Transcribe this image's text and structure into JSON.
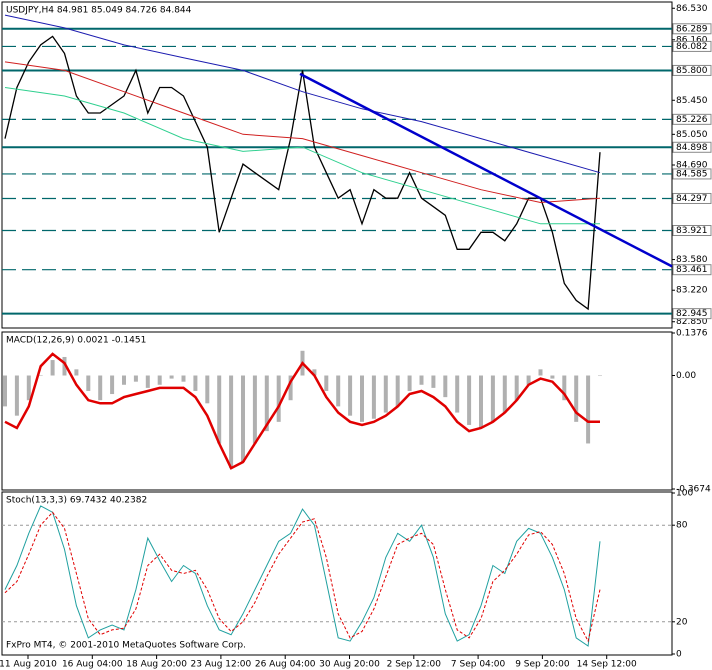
{
  "chart_data": [
    {
      "type": "price",
      "title": "USDJPY,H4  84.981 85.049 84.726 84.844",
      "ylim": [
        82.8,
        86.58
      ],
      "yticks": [
        {
          "value": 86.53,
          "label": "86.530"
        },
        {
          "value": 86.16,
          "label": "86.160"
        },
        {
          "value": 85.45,
          "label": "85.450"
        },
        {
          "value": 85.05,
          "label": "85.050"
        },
        {
          "value": 84.69,
          "label": "84.690"
        },
        {
          "value": 83.58,
          "label": "83.580"
        },
        {
          "value": 83.22,
          "label": "83.220"
        },
        {
          "value": 82.85,
          "label": "82.850"
        }
      ],
      "levels": [
        86.289,
        86.082,
        {
          "value": 85.8,
          "label": "85.800"
        },
        85.226,
        84.898,
        84.585,
        84.297,
        83.921,
        83.461,
        82.945
      ],
      "solid_levels": [
        0,
        2,
        4,
        9
      ],
      "level_color": "#00676b",
      "trendline": {
        "color": "#0000cc",
        "values": [
          85.76,
          83.5
        ]
      },
      "series": [
        {
          "name": "Close",
          "color": "#000000",
          "values": [
            85.0,
            85.6,
            85.9,
            86.1,
            86.2,
            86.0,
            85.5,
            85.3,
            85.3,
            85.4,
            85.5,
            85.8,
            85.3,
            85.6,
            85.6,
            85.5,
            85.2,
            84.9,
            83.9,
            84.3,
            84.7,
            84.6,
            84.5,
            84.4,
            85.0,
            85.8,
            84.9,
            84.6,
            84.3,
            84.4,
            84.0,
            84.4,
            84.3,
            84.3,
            84.6,
            84.3,
            84.2,
            84.1,
            83.7,
            83.7,
            83.9,
            83.9,
            83.8,
            84.0,
            84.3,
            84.3,
            83.9,
            83.3,
            83.1,
            83.0,
            84.84
          ]
        },
        {
          "name": "MA blue",
          "color": "#1c1cb0",
          "values": [
            86.45,
            86.3,
            86.1,
            85.95,
            85.8,
            85.55,
            85.35,
            85.2,
            85.0,
            84.8,
            84.6
          ]
        },
        {
          "name": "MA red",
          "color": "#d02020",
          "values": [
            85.9,
            85.8,
            85.55,
            85.3,
            85.05,
            85.0,
            84.8,
            84.6,
            84.4,
            84.25,
            84.3
          ]
        },
        {
          "name": "MA green",
          "color": "#30d090",
          "values": [
            85.6,
            85.5,
            85.3,
            85.0,
            84.85,
            84.9,
            84.6,
            84.4,
            84.2,
            84.0,
            84.0
          ]
        }
      ],
      "x_labels": [
        "11 Aug 2010",
        "16 Aug 04:00",
        "18 Aug 20:00",
        "23 Aug 12:00",
        "26 Aug 04:00",
        "30 Aug 20:00",
        "2 Sep 12:00",
        "7 Sep 04:00",
        "9 Sep 20:00",
        "14 Sep 12:00"
      ]
    },
    {
      "type": "macd",
      "title": "MACD(12,26,9) 0.0021 -0.1451",
      "ylim": [
        -0.3674,
        0.1376
      ],
      "yticks": [
        0.1376,
        {
          "value": 0,
          "label": "0.00"
        },
        -0.3674
      ],
      "series": [
        {
          "name": "Histogram",
          "color": "#b0b0b0",
          "values": [
            -0.1,
            -0.13,
            -0.08,
            0.0,
            0.05,
            0.06,
            0.02,
            -0.05,
            -0.08,
            -0.06,
            -0.03,
            -0.02,
            -0.04,
            -0.03,
            -0.01,
            -0.02,
            -0.05,
            -0.09,
            -0.22,
            -0.3,
            -0.28,
            -0.22,
            -0.18,
            -0.15,
            -0.08,
            0.08,
            0.02,
            -0.05,
            -0.1,
            -0.13,
            -0.15,
            -0.14,
            -0.12,
            -0.1,
            -0.05,
            -0.03,
            -0.04,
            -0.07,
            -0.12,
            -0.16,
            -0.17,
            -0.15,
            -0.12,
            -0.08,
            -0.03,
            0.02,
            -0.01,
            -0.08,
            -0.15,
            -0.22,
            0.0
          ]
        },
        {
          "name": "Signal",
          "color": "#e00000",
          "values": [
            -0.15,
            -0.17,
            -0.1,
            0.03,
            0.07,
            0.04,
            -0.03,
            -0.08,
            -0.09,
            -0.09,
            -0.07,
            -0.06,
            -0.05,
            -0.04,
            -0.04,
            -0.04,
            -0.07,
            -0.13,
            -0.22,
            -0.3,
            -0.28,
            -0.22,
            -0.16,
            -0.1,
            -0.02,
            0.04,
            0.0,
            -0.07,
            -0.12,
            -0.15,
            -0.16,
            -0.15,
            -0.13,
            -0.1,
            -0.06,
            -0.05,
            -0.07,
            -0.1,
            -0.15,
            -0.18,
            -0.17,
            -0.15,
            -0.12,
            -0.08,
            -0.03,
            -0.01,
            -0.02,
            -0.06,
            -0.12,
            -0.15,
            -0.15
          ]
        }
      ]
    },
    {
      "type": "stoch",
      "title": "Stoch(13,3,3) 69.7432 40.2382",
      "ylim": [
        0,
        100
      ],
      "yticks": [
        100,
        80,
        20,
        0
      ],
      "dashed_ticks": [
        1,
        2
      ],
      "series": [
        {
          "name": "Main",
          "color": "#20a0a0",
          "values": [
            40,
            55,
            75,
            92,
            88,
            65,
            30,
            10,
            15,
            18,
            15,
            40,
            72,
            58,
            45,
            55,
            50,
            30,
            15,
            12,
            25,
            40,
            55,
            70,
            75,
            90,
            80,
            45,
            10,
            8,
            20,
            35,
            60,
            75,
            70,
            80,
            60,
            25,
            8,
            12,
            30,
            55,
            50,
            70,
            78,
            75,
            60,
            40,
            10,
            5,
            70
          ]
        },
        {
          "name": "Signal",
          "color": "#e00000",
          "values": [
            38,
            45,
            62,
            80,
            88,
            78,
            50,
            22,
            12,
            15,
            16,
            28,
            55,
            62,
            52,
            50,
            52,
            40,
            22,
            14,
            20,
            32,
            48,
            62,
            72,
            82,
            84,
            60,
            25,
            10,
            14,
            28,
            48,
            68,
            72,
            75,
            68,
            40,
            15,
            10,
            22,
            45,
            52,
            62,
            74,
            76,
            68,
            50,
            22,
            8,
            40
          ]
        }
      ],
      "footer": "FxPro MT4, © 2001-2010 MetaQuotes Software Corp."
    }
  ]
}
